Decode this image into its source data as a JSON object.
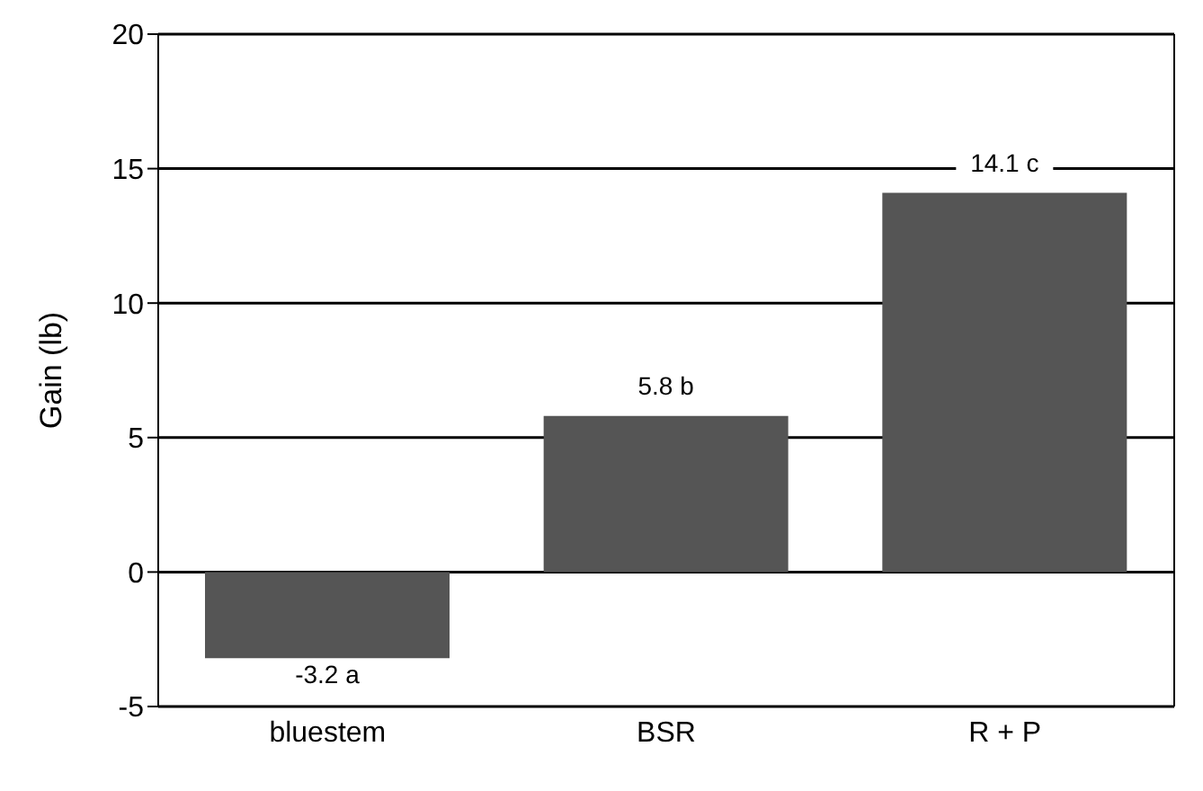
{
  "chart_data": {
    "type": "bar",
    "ylabel": "Gain (lb)",
    "categories": [
      "bluestem",
      "BSR",
      "R + P"
    ],
    "values": [
      -3.2,
      5.8,
      14.1
    ],
    "color": "#555555",
    "value_labels": [
      "-3.2 a",
      "5.8 b",
      "14.1 c"
    ],
    "ylim": [
      -5,
      20
    ],
    "yticks": [
      -5,
      0,
      5,
      10,
      15,
      20
    ],
    "grid": "y"
  }
}
